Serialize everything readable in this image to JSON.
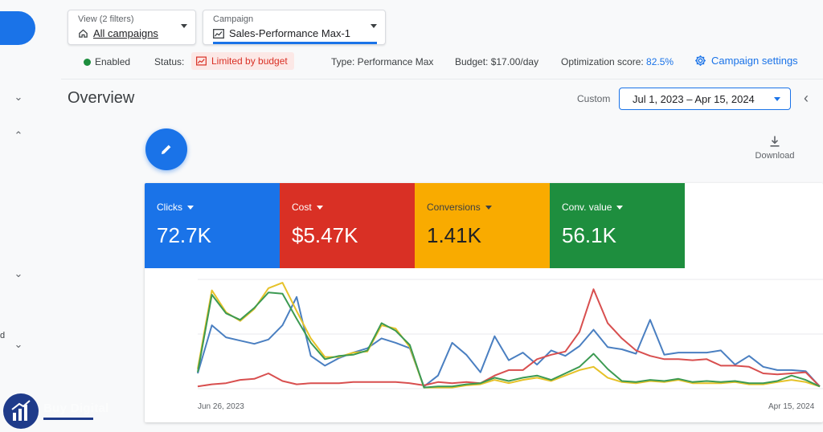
{
  "header": {
    "view_picker": {
      "label": "View (2 filters)",
      "value": "All campaigns",
      "icon": "home-icon"
    },
    "campaign_picker": {
      "label": "Campaign",
      "value": "Sales-Performance Max-1",
      "icon": "chart-icon"
    }
  },
  "status_bar": {
    "enabled": "Enabled",
    "status_label": "Status:",
    "status_value": "Limited by budget",
    "type": "Type: Performance Max",
    "budget": "Budget: $17.00/day",
    "opt_label": "Optimization score:",
    "opt_value": "82.5%",
    "settings": "Campaign settings"
  },
  "overview": {
    "title": "Overview",
    "custom_label": "Custom",
    "date_range": "Jul 1, 2023 – Apr 15, 2024",
    "download": "Download"
  },
  "metrics": [
    {
      "label": "Clicks",
      "value": "72.7K",
      "color": "#1a73e8"
    },
    {
      "label": "Cost",
      "value": "$5.47K",
      "color": "#d93025"
    },
    {
      "label": "Conversions",
      "value": "1.41K",
      "color": "#f9ab00"
    },
    {
      "label": "Conv. value",
      "value": "56.1K",
      "color": "#1e8e3e"
    }
  ],
  "sidebar": {
    "fragment": "d"
  },
  "watermark": {
    "text": "Buy Digital"
  },
  "chart_data": {
    "type": "line",
    "x_start_label": "Jun 26, 2023",
    "x_end_label": "Apr 15, 2024",
    "series": [
      {
        "name": "Clicks",
        "color": "#4a7fc1",
        "values": [
          0.14,
          0.58,
          0.47,
          0.44,
          0.41,
          0.45,
          0.58,
          0.84,
          0.3,
          0.21,
          0.28,
          0.33,
          0.37,
          0.46,
          0.42,
          0.37,
          0.02,
          0.12,
          0.42,
          0.31,
          0.15,
          0.48,
          0.26,
          0.33,
          0.22,
          0.35,
          0.3,
          0.39,
          0.54,
          0.38,
          0.36,
          0.32,
          0.63,
          0.31,
          0.33,
          0.33,
          0.33,
          0.35,
          0.22,
          0.3,
          0.2,
          0.17,
          0.17,
          0.16,
          0.02
        ]
      },
      {
        "name": "Cost",
        "color": "#d84f4f",
        "values": [
          0.02,
          0.04,
          0.05,
          0.08,
          0.09,
          0.14,
          0.07,
          0.04,
          0.05,
          0.05,
          0.05,
          0.06,
          0.06,
          0.06,
          0.06,
          0.05,
          0.03,
          0.06,
          0.05,
          0.06,
          0.05,
          0.12,
          0.17,
          0.17,
          0.27,
          0.31,
          0.34,
          0.52,
          0.91,
          0.6,
          0.46,
          0.35,
          0.3,
          0.27,
          0.27,
          0.26,
          0.27,
          0.21,
          0.21,
          0.2,
          0.14,
          0.13,
          0.14,
          0.15,
          0.02
        ]
      },
      {
        "name": "Conversions",
        "color": "#e6c229",
        "values": [
          0.18,
          0.9,
          0.7,
          0.62,
          0.73,
          0.92,
          0.97,
          0.71,
          0.46,
          0.29,
          0.29,
          0.33,
          0.34,
          0.58,
          0.55,
          0.38,
          0.01,
          0.01,
          0.01,
          0.03,
          0.04,
          0.08,
          0.05,
          0.08,
          0.1,
          0.07,
          0.12,
          0.17,
          0.2,
          0.1,
          0.06,
          0.05,
          0.07,
          0.06,
          0.08,
          0.05,
          0.05,
          0.05,
          0.06,
          0.04,
          0.04,
          0.06,
          0.08,
          0.06,
          0.02
        ]
      },
      {
        "name": "Conv. value",
        "color": "#3c9a52",
        "values": [
          0.15,
          0.86,
          0.69,
          0.63,
          0.74,
          0.88,
          0.87,
          0.64,
          0.42,
          0.27,
          0.3,
          0.31,
          0.35,
          0.6,
          0.53,
          0.4,
          0.01,
          0.02,
          0.02,
          0.04,
          0.05,
          0.1,
          0.07,
          0.1,
          0.12,
          0.08,
          0.14,
          0.2,
          0.32,
          0.18,
          0.07,
          0.06,
          0.08,
          0.07,
          0.09,
          0.06,
          0.07,
          0.06,
          0.07,
          0.05,
          0.05,
          0.07,
          0.12,
          0.08,
          0.02
        ]
      }
    ]
  }
}
